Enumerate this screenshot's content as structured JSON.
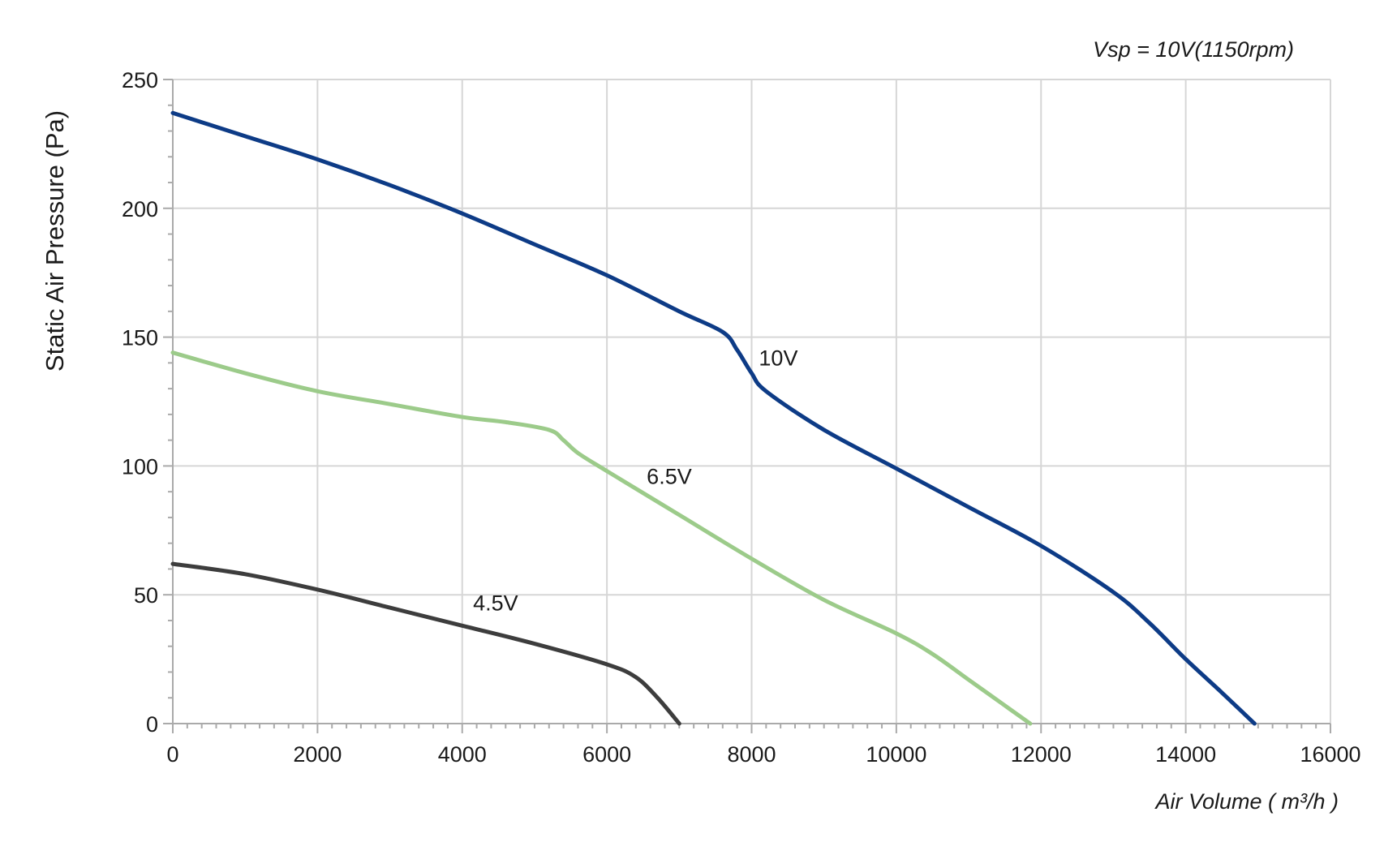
{
  "chart_data": {
    "type": "line",
    "title": "",
    "subtitle": "Vsp = 10V(1150rpm)",
    "xlabel": "Air Volume ( m³/h )",
    "ylabel": "Static Air Pressure  (Pa)",
    "xlim": [
      0,
      16000
    ],
    "ylim": [
      0,
      250
    ],
    "x_ticks": [
      "0",
      "2000",
      "4000",
      "6000",
      "8000",
      "10000",
      "12000",
      "14000",
      "16000"
    ],
    "y_ticks": [
      "0",
      "50",
      "100",
      "150",
      "200",
      "250"
    ],
    "grid": true,
    "legend": "none",
    "series": [
      {
        "name": "10V",
        "color": "#0d3b86",
        "label_at": [
          8100,
          139
        ],
        "x": [
          0,
          1000,
          2000,
          3000,
          4000,
          5000,
          6000,
          7000,
          7600,
          7800,
          8000,
          8200,
          9000,
          10000,
          11000,
          12000,
          13000,
          13500,
          14000,
          14500,
          14950
        ],
        "y": [
          237,
          228,
          219,
          209,
          198,
          186,
          174,
          160,
          152,
          145,
          136,
          129,
          114,
          99,
          84,
          69,
          51,
          39,
          25,
          12,
          0
        ]
      },
      {
        "name": "6.5V",
        "color": "#9ccb8a",
        "label_at": [
          6550,
          93
        ],
        "x": [
          0,
          1000,
          2000,
          3000,
          4000,
          4600,
          5200,
          5400,
          5600,
          6000,
          7000,
          8000,
          9000,
          10000,
          10500,
          11000,
          11500,
          11850
        ],
        "y": [
          144,
          136,
          129,
          124,
          119,
          117,
          114,
          110,
          105,
          98,
          81,
          64,
          48,
          35,
          27,
          17,
          7,
          0
        ]
      },
      {
        "name": "4.5V",
        "color": "#3d3d3d",
        "label_at": [
          4150,
          44
        ],
        "x": [
          0,
          1000,
          2000,
          3000,
          4000,
          5000,
          6000,
          6400,
          6700,
          7000
        ],
        "y": [
          62,
          58,
          52,
          45,
          38,
          31,
          23,
          18,
          10,
          0
        ]
      }
    ]
  }
}
